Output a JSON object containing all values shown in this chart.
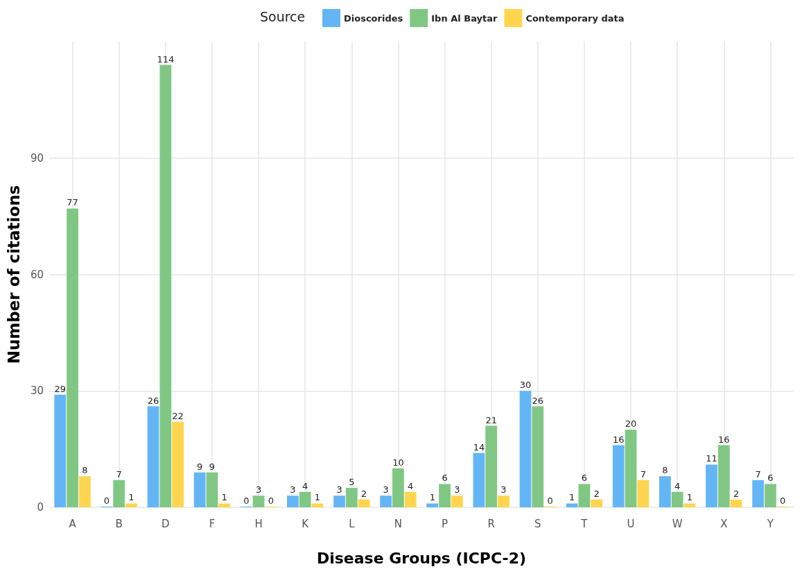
{
  "chart_data": {
    "type": "bar",
    "xlabel": "Disease Groups (ICPC-2)",
    "ylabel": "Number of citations",
    "legend_title": "Source",
    "categories": [
      "A",
      "B",
      "D",
      "F",
      "H",
      "K",
      "L",
      "N",
      "P",
      "R",
      "S",
      "T",
      "U",
      "W",
      "X",
      "Y"
    ],
    "series": [
      {
        "name": "Dioscorides",
        "color": "#64b5f6",
        "values": [
          29,
          0,
          26,
          9,
          0,
          3,
          3,
          3,
          1,
          14,
          30,
          1,
          16,
          8,
          11,
          7
        ]
      },
      {
        "name": "Ibn Al Baytar",
        "color": "#81c784",
        "values": [
          77,
          7,
          114,
          9,
          3,
          4,
          5,
          10,
          6,
          21,
          26,
          6,
          20,
          4,
          16,
          6
        ]
      },
      {
        "name": "Contemporary data",
        "color": "#ffd54f",
        "values": [
          8,
          1,
          22,
          1,
          0,
          1,
          2,
          4,
          3,
          3,
          0,
          2,
          7,
          1,
          2,
          0
        ]
      }
    ],
    "ylim": [
      0,
      120
    ],
    "yticks": [
      0,
      30,
      60,
      90
    ],
    "grid": true,
    "legend": "top",
    "data_labels": true
  }
}
